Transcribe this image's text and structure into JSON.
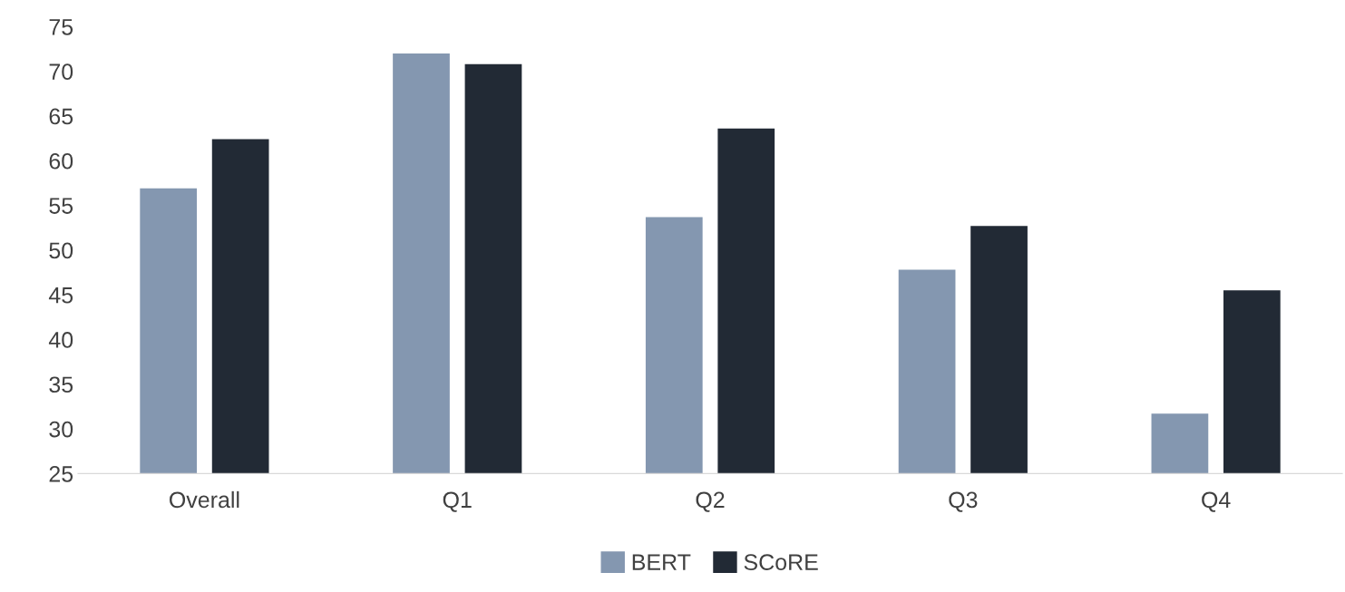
{
  "chart_data": {
    "type": "bar",
    "categories": [
      "Overall",
      "Q1",
      "Q2",
      "Q3",
      "Q4"
    ],
    "series": [
      {
        "name": "BERT",
        "color": "#8497b0",
        "values": [
          56.9,
          72.0,
          53.7,
          47.8,
          31.7
        ]
      },
      {
        "name": "SCoRE",
        "color": "#222a35",
        "values": [
          62.4,
          70.8,
          63.6,
          52.7,
          45.5
        ]
      }
    ],
    "ylim": [
      25,
      75
    ],
    "yticks": [
      25,
      30,
      35,
      40,
      45,
      50,
      55,
      60,
      65,
      70,
      75
    ],
    "grid": false,
    "legend": "bottom"
  }
}
